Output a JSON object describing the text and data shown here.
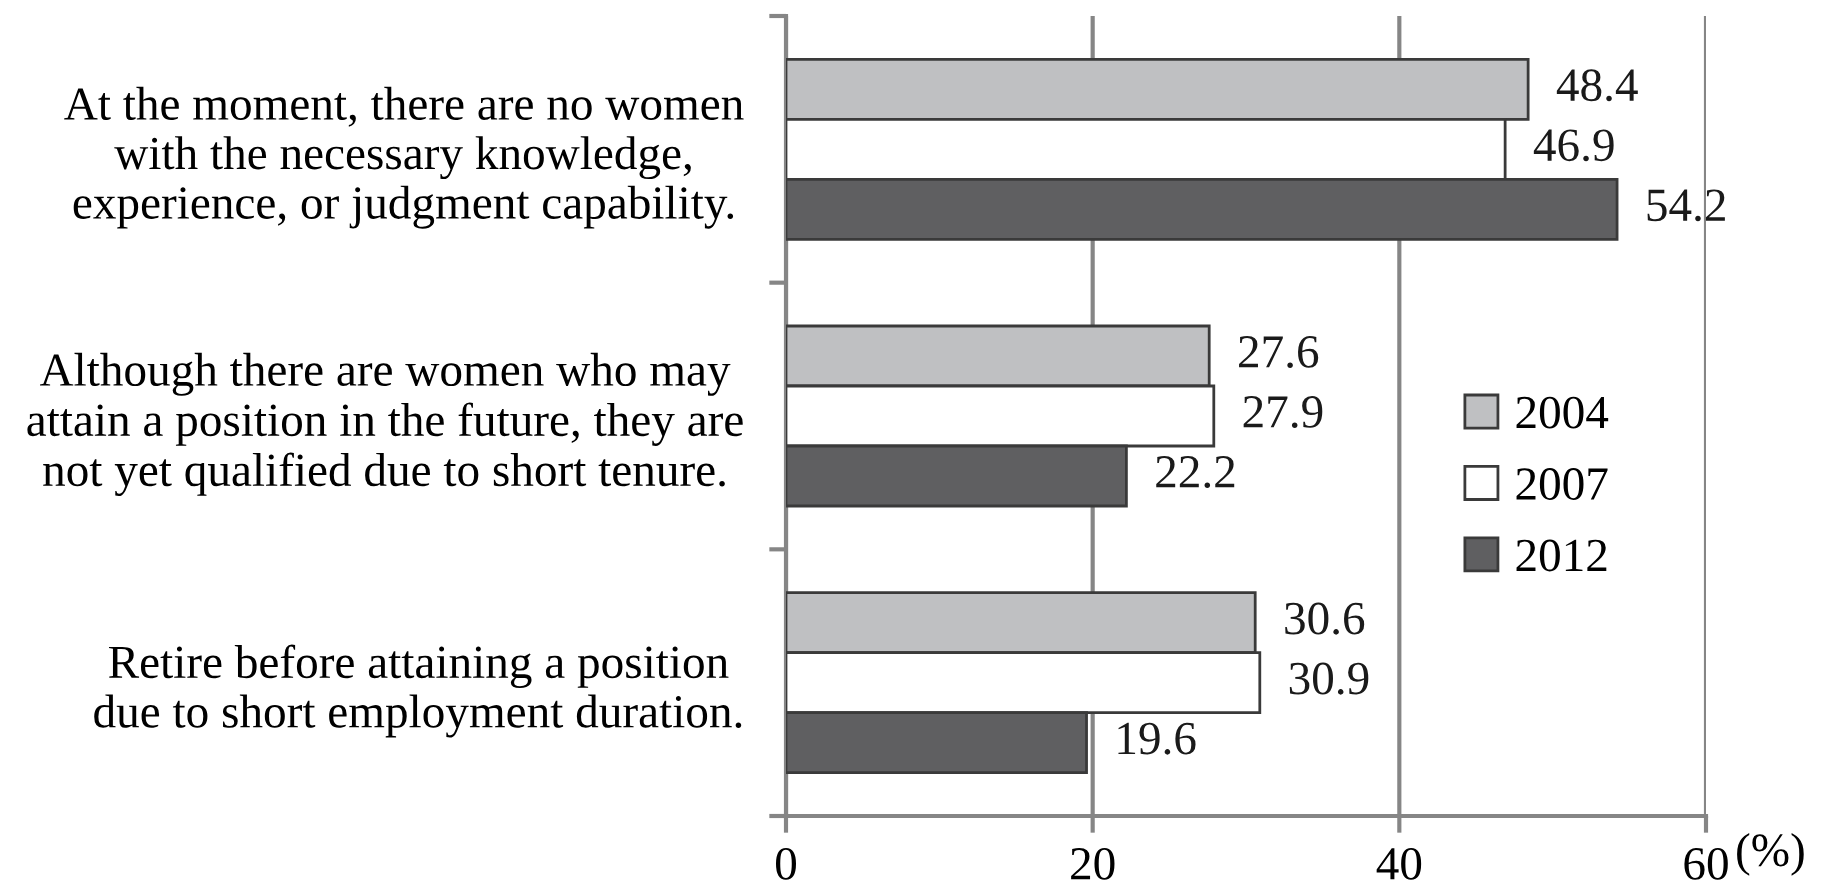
{
  "chart_data": {
    "type": "bar",
    "orientation": "horizontal",
    "categories": [
      "At the moment, there are no women\nwith the necessary knowledge,\nexperience, or judgment capability.",
      "Although there are women who may\nattain a position in the future, they are\nnot yet qualified due to short tenure.",
      "Retire before attaining a position\ndue to short employment duration."
    ],
    "series": [
      {
        "name": "2004",
        "color": "#bfc0c2",
        "values": [
          48.4,
          27.6,
          30.6
        ]
      },
      {
        "name": "2007",
        "color": "#ffffff",
        "values": [
          46.9,
          27.9,
          30.9
        ]
      },
      {
        "name": "2012",
        "color": "#5f5f61",
        "values": [
          54.2,
          22.2,
          19.6
        ]
      }
    ],
    "xlim": [
      0,
      60
    ],
    "xticks": [
      0,
      20,
      40,
      60
    ],
    "xlabel": "(%)",
    "grid": "x",
    "legend": "right",
    "data_labels": true
  }
}
